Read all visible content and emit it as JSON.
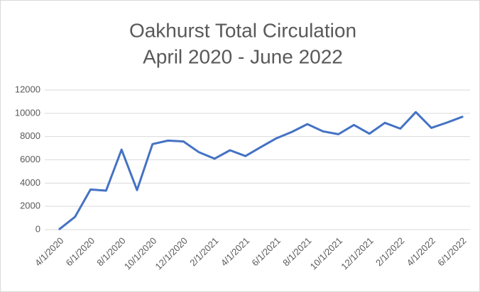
{
  "chart_data": {
    "type": "line",
    "title": [
      "Oakhurst Total Circulation",
      "April 2020 - June 2022"
    ],
    "categories": [
      "4/1/2020",
      null,
      "6/1/2020",
      null,
      "8/1/2020",
      null,
      "10/1/2020",
      null,
      "12/1/2020",
      null,
      "2/1/2021",
      null,
      "4/1/2021",
      null,
      "6/1/2021",
      null,
      "8/1/2021",
      null,
      "10/1/2021",
      null,
      "12/1/2021",
      null,
      "2/1/2022",
      null,
      "4/1/2022",
      null,
      "6/1/2022"
    ],
    "values": [
      50,
      1100,
      3450,
      3350,
      6880,
      3400,
      7350,
      7650,
      7580,
      6650,
      6100,
      6820,
      6320,
      7100,
      7850,
      8400,
      9070,
      8450,
      8200,
      9000,
      8250,
      9180,
      8680,
      10100,
      8750,
      9200,
      9700
    ],
    "color": "#4472c4",
    "ylim": [
      0,
      12000
    ],
    "yticks": [
      0,
      2000,
      4000,
      6000,
      8000,
      10000,
      12000
    ],
    "grid": true
  }
}
